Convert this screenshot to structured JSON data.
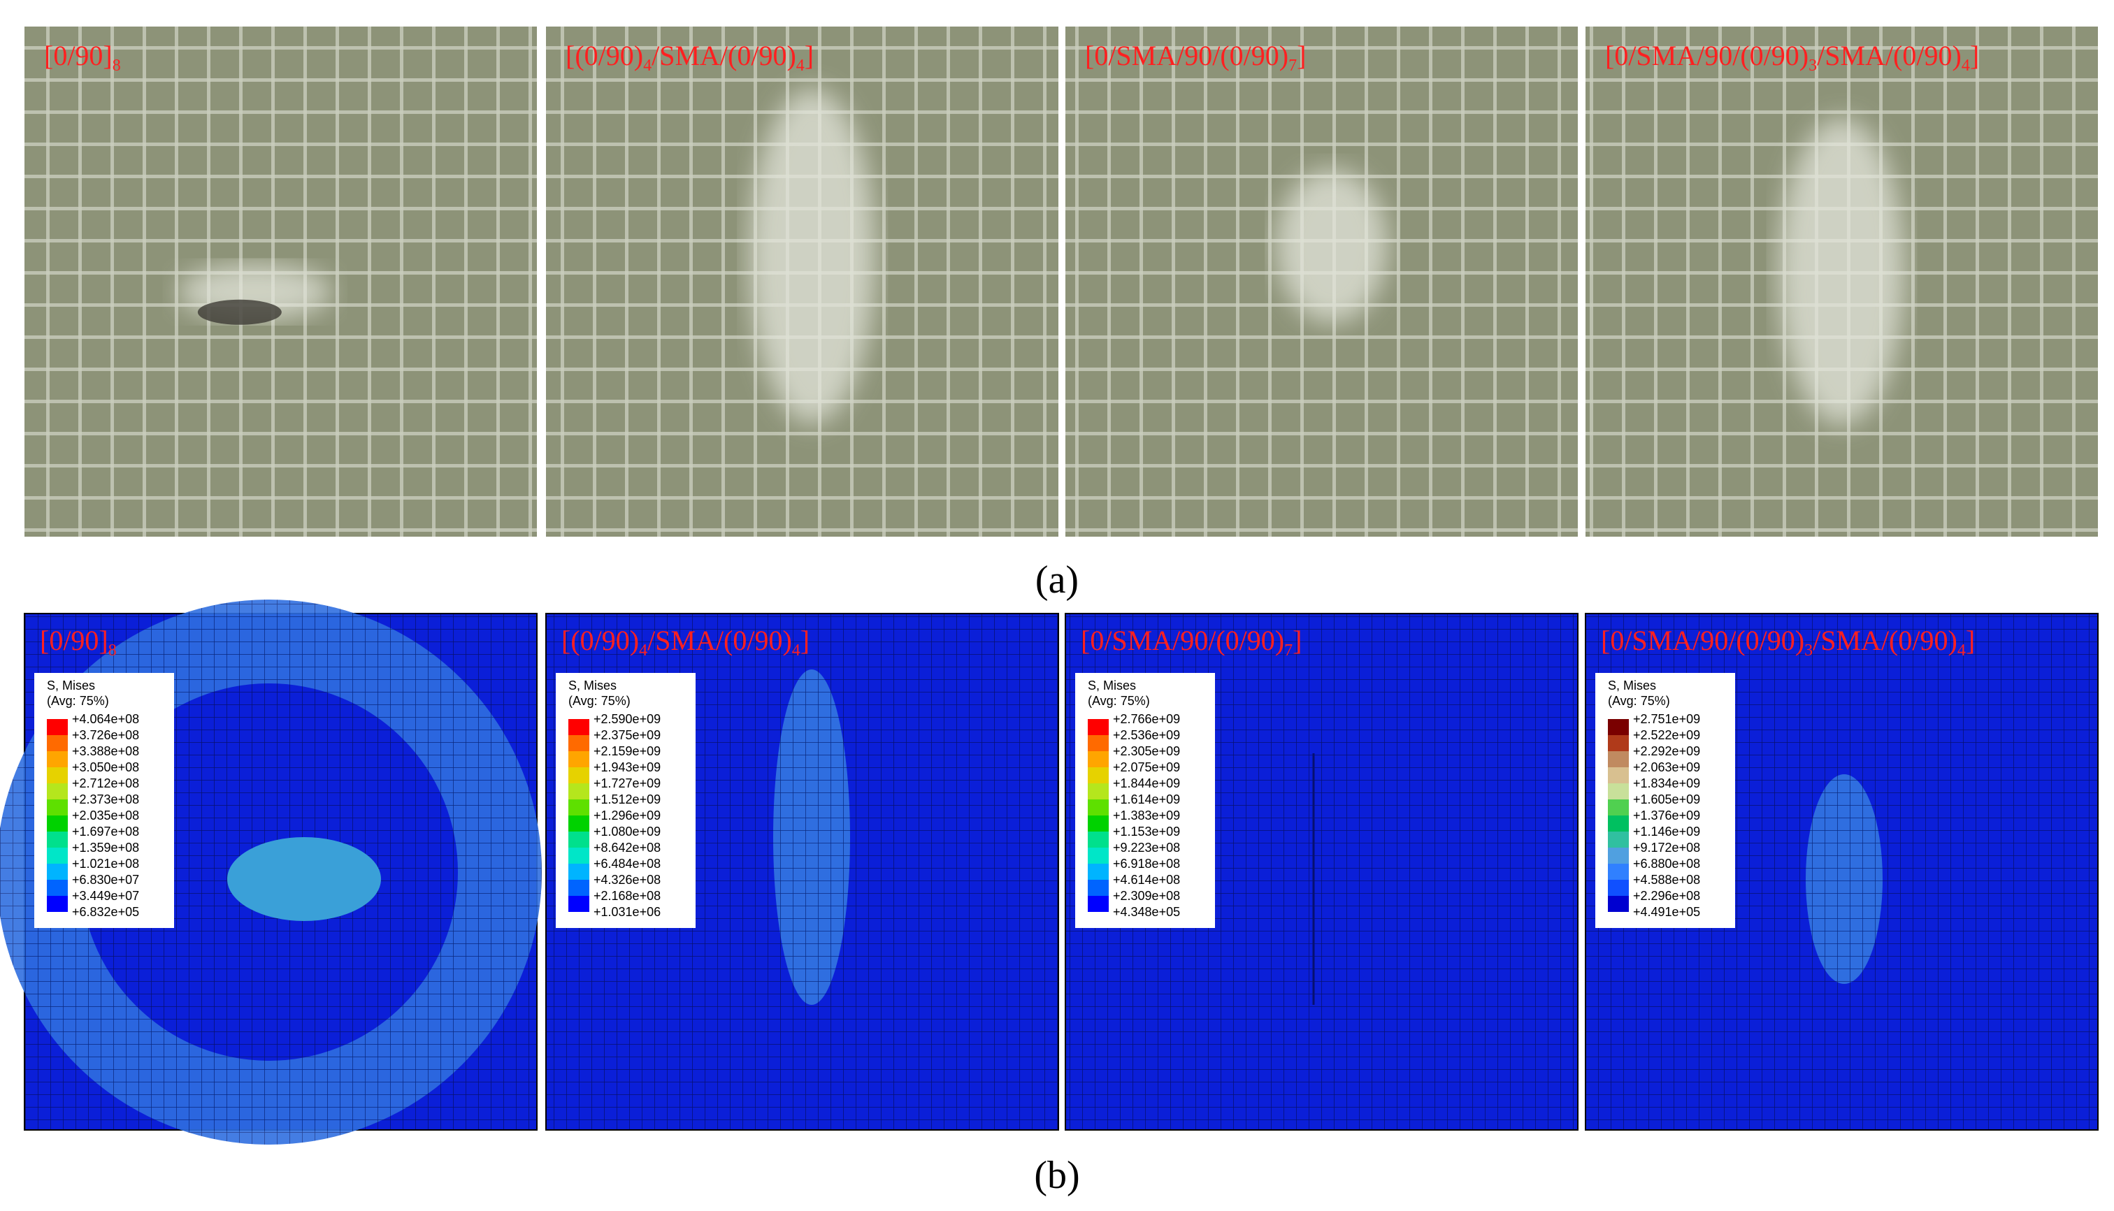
{
  "panel_a": {
    "caption": "(a)",
    "photos": [
      {
        "label": [
          {
            "text": "[0/90]"
          },
          {
            "text": "8",
            "sub": true
          },
          {
            "text": ""
          }
        ]
      },
      {
        "label": [
          {
            "text": "[(0/90)"
          },
          {
            "text": "4",
            "sub": true
          },
          {
            "text": "/SMA/(0/90)"
          },
          {
            "text": "4",
            "sub": true
          },
          {
            "text": "]"
          }
        ]
      },
      {
        "label": [
          {
            "text": "[0/SMA/90/(0/90)"
          },
          {
            "text": "7",
            "sub": true
          },
          {
            "text": "]"
          }
        ]
      },
      {
        "label": [
          {
            "text": "[0/SMA/90/(0/90)"
          },
          {
            "text": "3",
            "sub": true
          },
          {
            "text": "/SMA/(0/90)"
          },
          {
            "text": "4",
            "sub": true
          },
          {
            "text": "]"
          }
        ]
      }
    ]
  },
  "panel_b": {
    "caption": "(b)",
    "plots": [
      {
        "label": [
          {
            "text": "[0/90]"
          },
          {
            "text": "8",
            "sub": true
          }
        ],
        "legend": {
          "title": "S, Mises",
          "subtitle": "(Avg: 75%)",
          "values": [
            "+4.064e+08",
            "+3.726e+08",
            "+3.388e+08",
            "+3.050e+08",
            "+2.712e+08",
            "+2.373e+08",
            "+2.035e+08",
            "+1.697e+08",
            "+1.359e+08",
            "+1.021e+08",
            "+6.830e+07",
            "+3.449e+07",
            "+6.832e+05"
          ]
        }
      },
      {
        "label": [
          {
            "text": "[(0/90)"
          },
          {
            "text": "4",
            "sub": true
          },
          {
            "text": "/SMA/(0/90)"
          },
          {
            "text": "4",
            "sub": true
          },
          {
            "text": "]"
          }
        ],
        "legend": {
          "title": "S, Mises",
          "subtitle": "(Avg: 75%)",
          "values": [
            "+2.590e+09",
            "+2.375e+09",
            "+2.159e+09",
            "+1.943e+09",
            "+1.727e+09",
            "+1.512e+09",
            "+1.296e+09",
            "+1.080e+09",
            "+8.642e+08",
            "+6.484e+08",
            "+4.326e+08",
            "+2.168e+08",
            "+1.031e+06"
          ]
        }
      },
      {
        "label": [
          {
            "text": "[0/SMA/90/(0/90)"
          },
          {
            "text": "7",
            "sub": true
          },
          {
            "text": "]"
          }
        ],
        "legend": {
          "title": "S, Mises",
          "subtitle": "(Avg: 75%)",
          "values": [
            "+2.766e+09",
            "+2.536e+09",
            "+2.305e+09",
            "+2.075e+09",
            "+1.844e+09",
            "+1.614e+09",
            "+1.383e+09",
            "+1.153e+09",
            "+9.223e+08",
            "+6.918e+08",
            "+4.614e+08",
            "+2.309e+08",
            "+4.348e+05"
          ]
        }
      },
      {
        "label": [
          {
            "text": "[0/SMA/90/(0/90)"
          },
          {
            "text": "3",
            "sub": true
          },
          {
            "text": "/SMA/(0/90)"
          },
          {
            "text": "4",
            "sub": true
          },
          {
            "text": "]"
          }
        ],
        "legend": {
          "title": "S, Mises",
          "subtitle": "(Avg: 75%)",
          "values": [
            "+2.751e+09",
            "+2.522e+09",
            "+2.292e+09",
            "+2.063e+09",
            "+1.834e+09",
            "+1.605e+09",
            "+1.376e+09",
            "+1.146e+09",
            "+9.172e+08",
            "+6.880e+08",
            "+4.588e+08",
            "+2.296e+08",
            "+4.491e+05"
          ]
        }
      }
    ]
  }
}
